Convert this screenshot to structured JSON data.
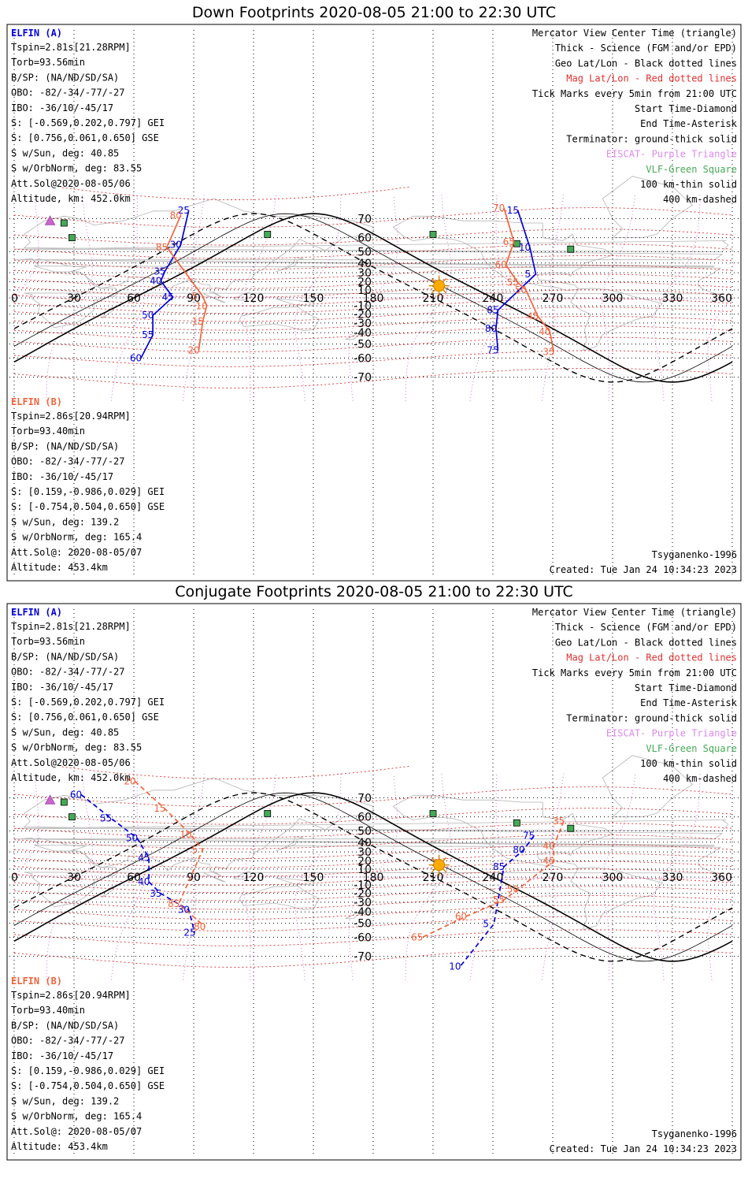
{
  "colors": {
    "elfin_a": "#0000dd",
    "elfin_b": "#f0643c",
    "mag_grid": "#e03030",
    "geo_grid": "#000000",
    "coast": "#b4b4b4",
    "terminator": "#000000",
    "lbl_pink": "#dd88ee",
    "vlf_green": "#44aa55",
    "eiscat_purple": "#cc66cc",
    "sun": "#ffaa00"
  },
  "panels": [
    {
      "id": "down",
      "title": "Down Footprints 2020-08-05 21:00 to 22:30 UTC",
      "elfin_a": {
        "header": "ELFIN (A)",
        "lines": [
          "Tspin=2.81s[21.28RPM]",
          "Torb=93.56min",
          "B/SP: (NA/ND/SD/SA)",
          "OBO: -82/-34/-77/-27",
          "IBO: -36/10/-45/17",
          "S: [-0.569,0.202,0.797] GEI",
          "S: [0.756,0.061,0.650] GSE",
          "S w/Sun, deg: 40.85",
          "S w/OrbNorm, deg: 83.55",
          "Att.Sol@2020-08-05/06",
          "Altitude, km: 452.0km"
        ]
      },
      "elfin_b": {
        "header": "ELFIN (B)",
        "lines": [
          "Tspin=2.86s[20.94RPM]",
          "Torb=93.40min",
          "B/SP: (NA/ND/SD/SA)",
          "OBO: -82/-34/-77/-27",
          "IBO: -36/10/-45/17",
          "S: [0.159,-0.986,0.029] GEI",
          "S: [-0.754,0.504,0.650] GSE",
          "S w/Sun, deg: 139.2",
          "S w/OrbNorm, deg: 165.4",
          "Att.Sol@: 2020-08-05/07",
          "Altitude: 453.4km"
        ]
      },
      "legend": [
        {
          "text": "Mercator View Center Time (triangle)",
          "color": "#000000"
        },
        {
          "text": "Thick - Science (FGM and/or EPD)",
          "color": "#000000"
        },
        {
          "text": "Geo Lat/Lon - Black dotted lines",
          "color": "#000000"
        },
        {
          "text": "Mag Lat/Lon - Red dotted lines",
          "color": "#e03030"
        },
        {
          "text": "Tick Marks every 5min from 21:00 UTC",
          "color": "#000000"
        },
        {
          "text": "Start Time-Diamond",
          "color": "#000000"
        },
        {
          "text": "End Time-Asterisk",
          "color": "#000000"
        },
        {
          "text": "Terminator: ground-thick solid",
          "color": "#000000"
        },
        {
          "text": "EISCAT- Purple Triangle",
          "color": "#dd88ee"
        },
        {
          "text": "VLF-Green Square",
          "color": "#44aa55"
        },
        {
          "text": "100 km-thin solid",
          "color": "#000000"
        },
        {
          "text": "400 km-dashed",
          "color": "#000000"
        }
      ],
      "model": "Tsyganenko-1996",
      "created": "Created: Tue Jan 24 10:34:23 2023"
    },
    {
      "id": "conjugate",
      "title": "Conjugate Footprints 2020-08-05 21:00 to 22:30 UTC",
      "elfin_a": {
        "header": "ELFIN (A)",
        "lines": [
          "Tspin=2.81s[21.28RPM]",
          "Torb=93.56min",
          "B/SP: (NA/ND/SD/SA)",
          "OBO: -82/-34/-77/-27",
          "IBO: -36/10/-45/17",
          "S: [-0.569,0.202,0.797] GEI",
          "S: [0.756,0.061,0.650] GSE",
          "S w/Sun, deg: 40.85",
          "S w/OrbNorm, deg: 83.55",
          "Att.Sol@2020-08-05/06",
          "Altitude, km: 452.0km"
        ]
      },
      "elfin_b": {
        "header": "ELFIN (B)",
        "lines": [
          "Tspin=2.86s[20.94RPM]",
          "Torb=93.40min",
          "B/SP: (NA/ND/SD/SA)",
          "OBO: -82/-34/-77/-27",
          "IBO: -36/10/-45/17",
          "S: [0.159,-0.986,0.029] GEI",
          "S: [-0.754,0.504,0.650] GSE",
          "S w/Sun, deg: 139.2",
          "S w/OrbNorm, deg: 165.4",
          "Att.Sol@: 2020-08-05/07",
          "Altitude: 453.4km"
        ]
      },
      "legend": [
        {
          "text": "Mercator View Center Time (triangle)",
          "color": "#000000"
        },
        {
          "text": "Thick - Science (FGM and/or EPD)",
          "color": "#000000"
        },
        {
          "text": "Geo Lat/Lon - Black dotted lines",
          "color": "#000000"
        },
        {
          "text": "Mag Lat/Lon - Red dotted lines",
          "color": "#e03030"
        },
        {
          "text": "Tick Marks every 5min from 21:00 UTC",
          "color": "#000000"
        },
        {
          "text": "Start Time-Diamond",
          "color": "#000000"
        },
        {
          "text": "End Time-Asterisk",
          "color": "#000000"
        },
        {
          "text": "Terminator: ground-thick solid",
          "color": "#000000"
        },
        {
          "text": "EISCAT- Purple Triangle",
          "color": "#dd88ee"
        },
        {
          "text": "VLF-Green Square",
          "color": "#44aa55"
        },
        {
          "text": "100 km-thin solid",
          "color": "#000000"
        },
        {
          "text": "400 km-dashed",
          "color": "#000000"
        }
      ],
      "model": "Tsyganenko-1996",
      "created": "Created: Tue Jan 24 10:34:23 2023"
    }
  ],
  "grid": {
    "lon_ticks": [
      "0",
      "30",
      "60",
      "90",
      "120",
      "150",
      "180",
      "210",
      "240",
      "270",
      "300",
      "330",
      "360"
    ],
    "lat_ticks": [
      "70",
      "60",
      "50",
      "40",
      "30",
      "20",
      "10",
      "-10",
      "-20",
      "-30",
      "-40",
      "-50",
      "-60",
      "-70"
    ]
  },
  "tracks": {
    "down": {
      "a_labels": [
        {
          "text": "25",
          "lon": 82,
          "lat": 72
        },
        {
          "text": "30",
          "lon": 78,
          "lat": 53
        },
        {
          "text": "35",
          "lon": 70,
          "lat": 28
        },
        {
          "text": "40",
          "lon": 68,
          "lat": 17
        },
        {
          "text": "45",
          "lon": 74,
          "lat": -3
        },
        {
          "text": "50",
          "lon": 64,
          "lat": -25
        },
        {
          "text": "55",
          "lon": 64,
          "lat": -45
        },
        {
          "text": "60",
          "lon": 58,
          "lat": -62
        },
        {
          "text": "15",
          "lon": 247,
          "lat": 72
        },
        {
          "text": "10",
          "lon": 253,
          "lat": 51
        },
        {
          "text": "5",
          "lon": 256,
          "lat": 25
        },
        {
          "text": "85",
          "lon": 237,
          "lat": -19
        },
        {
          "text": "80",
          "lon": 236,
          "lat": -39
        },
        {
          "text": "75",
          "lon": 237,
          "lat": -57
        }
      ],
      "b_labels": [
        {
          "text": "80",
          "lon": 78,
          "lat": 70
        },
        {
          "text": "85",
          "lon": 71,
          "lat": 51
        },
        {
          "text": "5",
          "lon": 89,
          "lat": -2
        },
        {
          "text": "10",
          "lon": 91,
          "lat": -14
        },
        {
          "text": "15",
          "lon": 89,
          "lat": -32
        },
        {
          "text": "20",
          "lon": 87,
          "lat": -57
        },
        {
          "text": "70",
          "lon": 240,
          "lat": 73
        },
        {
          "text": "65",
          "lon": 245,
          "lat": 55
        },
        {
          "text": "60",
          "lon": 241,
          "lat": 35
        },
        {
          "text": "55",
          "lon": 247,
          "lat": 15
        },
        {
          "text": "50",
          "lon": 251,
          "lat": 6
        },
        {
          "text": "45",
          "lon": 257,
          "lat": -26
        },
        {
          "text": "40",
          "lon": 263,
          "lat": -42
        },
        {
          "text": "35",
          "lon": 265,
          "lat": -58
        }
      ]
    },
    "conjugate": {
      "a_labels": [
        {
          "text": "60",
          "lon": 28,
          "lat": 70
        },
        {
          "text": "55",
          "lon": 43,
          "lat": 57
        },
        {
          "text": "50",
          "lon": 56,
          "lat": 41
        },
        {
          "text": "45",
          "lon": 62,
          "lat": 20
        },
        {
          "text": "40",
          "lon": 62,
          "lat": -10
        },
        {
          "text": "35",
          "lon": 68,
          "lat": -24
        },
        {
          "text": "30",
          "lon": 82,
          "lat": -41
        },
        {
          "text": "25",
          "lon": 85,
          "lat": -59
        },
        {
          "text": "75",
          "lon": 255,
          "lat": 43
        },
        {
          "text": "80",
          "lon": 250,
          "lat": 29
        },
        {
          "text": "85",
          "lon": 240,
          "lat": 9
        },
        {
          "text": "5",
          "lon": 235,
          "lat": -53
        },
        {
          "text": "10",
          "lon": 218,
          "lat": -75
        }
      ],
      "b_labels": [
        {
          "text": "20",
          "lon": 55,
          "lat": 75
        },
        {
          "text": "15",
          "lon": 70,
          "lat": 63
        },
        {
          "text": "10",
          "lon": 83,
          "lat": 44
        },
        {
          "text": "5",
          "lon": 89,
          "lat": 29
        },
        {
          "text": "85",
          "lon": 77,
          "lat": -35
        },
        {
          "text": "80",
          "lon": 90,
          "lat": -55
        },
        {
          "text": "35",
          "lon": 270,
          "lat": 55
        },
        {
          "text": "40",
          "lon": 265,
          "lat": 33
        },
        {
          "text": "45",
          "lon": 265,
          "lat": 16
        },
        {
          "text": "50",
          "lon": 247,
          "lat": -19
        },
        {
          "text": "55",
          "lon": 240,
          "lat": -31
        },
        {
          "text": "60",
          "lon": 221,
          "lat": -47
        },
        {
          "text": "65",
          "lon": 199,
          "lat": -62
        }
      ]
    }
  },
  "vlf_stations": [
    {
      "lon": 25,
      "lat": 68
    },
    {
      "lon": 29,
      "lat": 60
    },
    {
      "lon": 127,
      "lat": 62
    },
    {
      "lon": 210,
      "lat": 62
    },
    {
      "lon": 252,
      "lat": 56
    },
    {
      "lon": 279,
      "lat": 52
    }
  ],
  "eiscat": {
    "lon": 18,
    "lat": 69
  },
  "sun": {
    "lon": 213,
    "lat": 15
  }
}
